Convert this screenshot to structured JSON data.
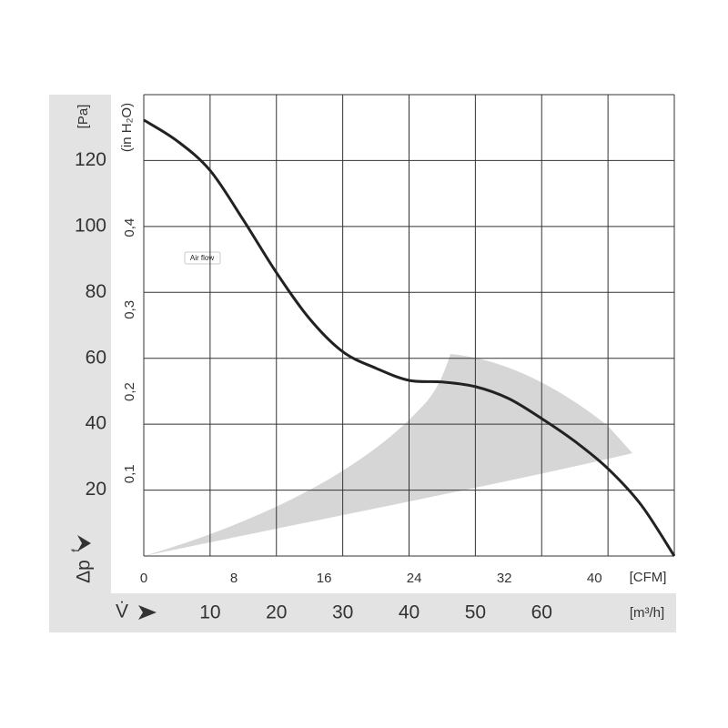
{
  "chart_data": {
    "type": "line",
    "y_label": "[Pa]",
    "y2_label": "(in H₂O)",
    "x_label": "[m³/h]",
    "x2_label": "[CFM]",
    "y_symbol": "Δp",
    "y_symbol_sub": "f",
    "x_symbol": "V̇",
    "annotation": "Air flow",
    "x": [
      0,
      5,
      10,
      15,
      20,
      25,
      30,
      35,
      40,
      45,
      50,
      55,
      60,
      65,
      70,
      75,
      80
    ],
    "series": [
      {
        "color": "#222222",
        "values": [
          132.3,
          126,
          117,
          102,
          86,
          72,
          62,
          57,
          53.3,
          52.8,
          51.4,
          47.8,
          41.7,
          34.8,
          26.5,
          15.5,
          0
        ]
      }
    ],
    "xlim": [
      0,
      80
    ],
    "xticks": [
      10,
      20,
      30,
      40,
      50,
      60
    ],
    "xgrid": [
      0,
      10,
      20,
      30,
      40,
      50,
      60,
      70,
      80
    ],
    "ylim": [
      0,
      140
    ],
    "yticks": [
      20,
      40,
      60,
      80,
      100,
      120
    ],
    "ygrid": [
      0,
      20,
      40,
      60,
      80,
      100,
      120,
      140
    ],
    "x2lim": [
      0,
      47.09
    ],
    "x2ticks": [
      0,
      8,
      16,
      24,
      32,
      40
    ],
    "y2lim": [
      0,
      0.562
    ],
    "y2ticks": [
      {
        "value": 0.1,
        "label": "0,1"
      },
      {
        "value": 0.2,
        "label": "0,2"
      },
      {
        "value": 0.3,
        "label": "0,3"
      },
      {
        "value": 0.4,
        "label": "0,4"
      }
    ],
    "grid": true
  }
}
